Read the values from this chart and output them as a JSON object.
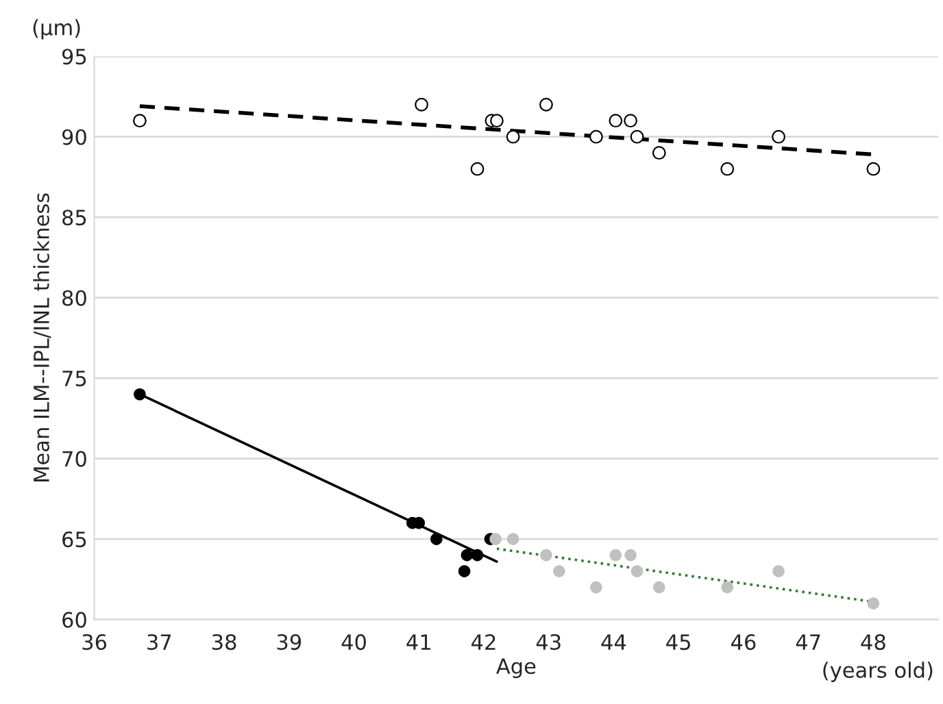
{
  "chart_data": {
    "type": "scatter",
    "xlabel": "Age",
    "ylabel": "Mean ILM--IPL/INL thickness",
    "annotations": [
      "(μm)",
      "(years old)"
    ],
    "xlim": [
      36,
      49
    ],
    "xticks": [
      36,
      37,
      38,
      39,
      40,
      41,
      42,
      43,
      44,
      45,
      46,
      47,
      48
    ],
    "ylim": [
      60,
      95
    ],
    "yticks": [
      60,
      65,
      70,
      75,
      80,
      85,
      90,
      95
    ],
    "grid": "y",
    "legend": false,
    "marker": "circle",
    "series": [
      {
        "type": "line",
        "color": "#000000",
        "line_style": "dashed",
        "marker": "none",
        "x": [
          36.7,
          48
        ],
        "values": [
          91.9,
          88.9
        ]
      },
      {
        "type": "line",
        "color": "#000000",
        "line_style": "solid",
        "marker": "none",
        "x": [
          36.7,
          42.2
        ],
        "values": [
          74,
          63.6
        ]
      },
      {
        "type": "line",
        "color": "#2e7d32",
        "line_style": "dotted",
        "marker": "none",
        "x": [
          42.2,
          48
        ],
        "values": [
          64.4,
          61.1
        ]
      },
      {
        "color": "#ffffff",
        "x": [
          36.7,
          41.04,
          41.9,
          42.12,
          42.2,
          42.45,
          42.96,
          43.73,
          44.03,
          44.26,
          44.36,
          44.7,
          45.75,
          46.54,
          48
        ],
        "values": [
          91,
          92,
          88,
          91,
          91,
          90,
          92,
          90,
          91,
          91,
          90,
          89,
          88,
          90,
          88
        ]
      },
      {
        "color": "#000000",
        "x": [
          36.7,
          40.9,
          41.0,
          41.27,
          41.7,
          41.74,
          41.9,
          42.1
        ],
        "values": [
          74,
          66,
          66,
          65,
          63,
          64,
          64,
          65
        ]
      },
      {
        "color": "#c0c0c0",
        "x": [
          42.18,
          42.45,
          42.96,
          43.16,
          43.73,
          44.03,
          44.26,
          44.36,
          44.7,
          45.75,
          46.54,
          48
        ],
        "values": [
          65,
          65,
          64,
          63,
          62,
          64,
          64,
          63,
          62,
          62,
          63,
          61
        ]
      }
    ]
  }
}
